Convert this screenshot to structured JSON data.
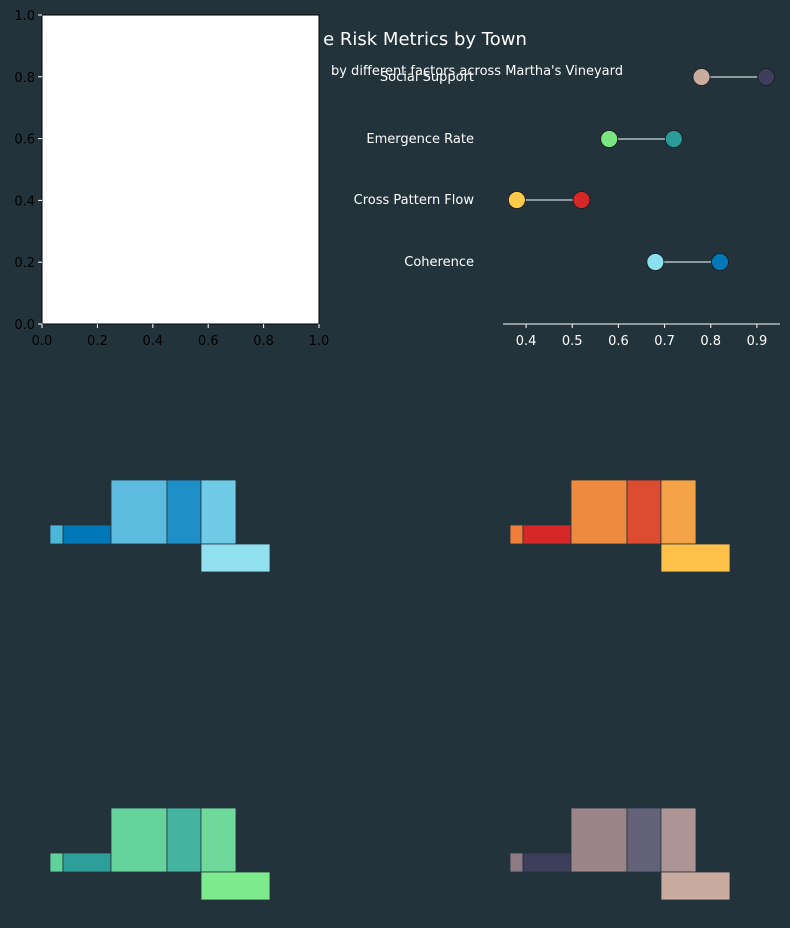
{
  "colors": {
    "background": "#22333b",
    "text": "#ffffff",
    "empty_axes_bg": "#ffffff",
    "empty_axes_text": "#000000",
    "connector": "#ffffff",
    "map_edge": "#22333b"
  },
  "figure": {
    "title": "e Risk Metrics by Town",
    "subtitle": "by different factors across Martha's Vineyard"
  },
  "chart_data": [
    {
      "id": "empty-axes",
      "type": "scatter",
      "title": "",
      "xlabel": "",
      "ylabel": "",
      "xlim": [
        0.0,
        1.0
      ],
      "ylim": [
        0.0,
        1.0
      ],
      "xticks": [
        "0.0",
        "0.2",
        "0.4",
        "0.6",
        "0.8",
        "1.0"
      ],
      "yticks": [
        "0.0",
        "0.2",
        "0.4",
        "0.6",
        "0.8",
        "1.0"
      ],
      "grid": false,
      "series": []
    },
    {
      "id": "dumbbell",
      "type": "scatter",
      "title": "",
      "xlabel": "",
      "ylabel": "",
      "xlim": [
        0.35,
        0.95
      ],
      "xticks": [
        "0.4",
        "0.5",
        "0.6",
        "0.7",
        "0.8",
        "0.9"
      ],
      "grid": false,
      "categories": [
        "Social Support",
        "Emergence Rate",
        "Cross Pattern Flow",
        "Coherence"
      ],
      "series": [
        {
          "values": [
            0.78,
            0.58,
            0.38,
            0.68
          ],
          "colors": [
            "#c9aba0",
            "#7ae582",
            "#ffc94a",
            "#8ae0f0"
          ]
        },
        {
          "values": [
            0.92,
            0.72,
            0.52,
            0.82
          ],
          "colors": [
            "#3d3d5c",
            "#2a9d9a",
            "#d62828",
            "#0077b6"
          ]
        }
      ]
    }
  ],
  "maps": [
    {
      "id": "map-top-left",
      "colors": [
        "#4cb8d9",
        "#0077b6",
        "#5cbbdf",
        "#1f8fc8",
        "#6fcbe6",
        "#90e0ef"
      ]
    },
    {
      "id": "map-top-right",
      "colors": [
        "#f07d3a",
        "#d62828",
        "#ee8a40",
        "#dd4b30",
        "#f3a247",
        "#ffc14a"
      ]
    },
    {
      "id": "map-bottom-left",
      "colors": [
        "#5fd39a",
        "#2e9e9a",
        "#66d39c",
        "#45b4a1",
        "#6fd99b",
        "#7eea8e"
      ]
    },
    {
      "id": "map-bottom-right",
      "colors": [
        "#8c7b85",
        "#3d3d5c",
        "#9b8588",
        "#636278",
        "#ac9594",
        "#c9aba0"
      ]
    }
  ]
}
